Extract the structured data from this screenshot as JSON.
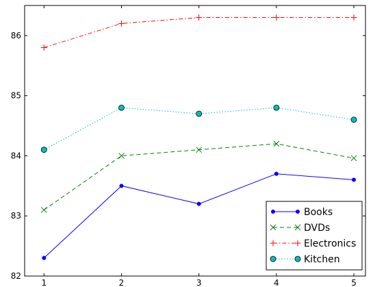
{
  "chart_data": {
    "type": "line",
    "title": "",
    "xlabel": "",
    "ylabel": "",
    "x": [
      1,
      2,
      3,
      4,
      5
    ],
    "xlim": [
      0.75,
      5.15
    ],
    "ylim": [
      82,
      86.5
    ],
    "xticks": [
      "1",
      "2",
      "3",
      "4",
      "5"
    ],
    "yticks": [
      "82",
      "83",
      "84",
      "85",
      "86"
    ],
    "grid": false,
    "legend_position": "lower-right",
    "series": [
      {
        "name": "Books",
        "values": [
          82.3,
          83.5,
          83.2,
          83.7,
          83.6
        ],
        "color": "#0000ff",
        "dash": "",
        "marker": "dot"
      },
      {
        "name": "DVDs",
        "values": [
          83.1,
          84.0,
          84.1,
          84.2,
          83.96
        ],
        "color": "#008000",
        "dash": "6,4",
        "marker": "x"
      },
      {
        "name": "Electronics",
        "values": [
          85.8,
          86.2,
          86.3,
          86.3,
          86.3
        ],
        "color": "#ff0000",
        "dash": "6,3,1.5,3",
        "marker": "plus"
      },
      {
        "name": "Kitchen",
        "values": [
          84.1,
          84.8,
          84.7,
          84.8,
          84.6
        ],
        "color": "#00bfbf",
        "dash": "1.5,2.5",
        "marker": "circle"
      }
    ]
  }
}
